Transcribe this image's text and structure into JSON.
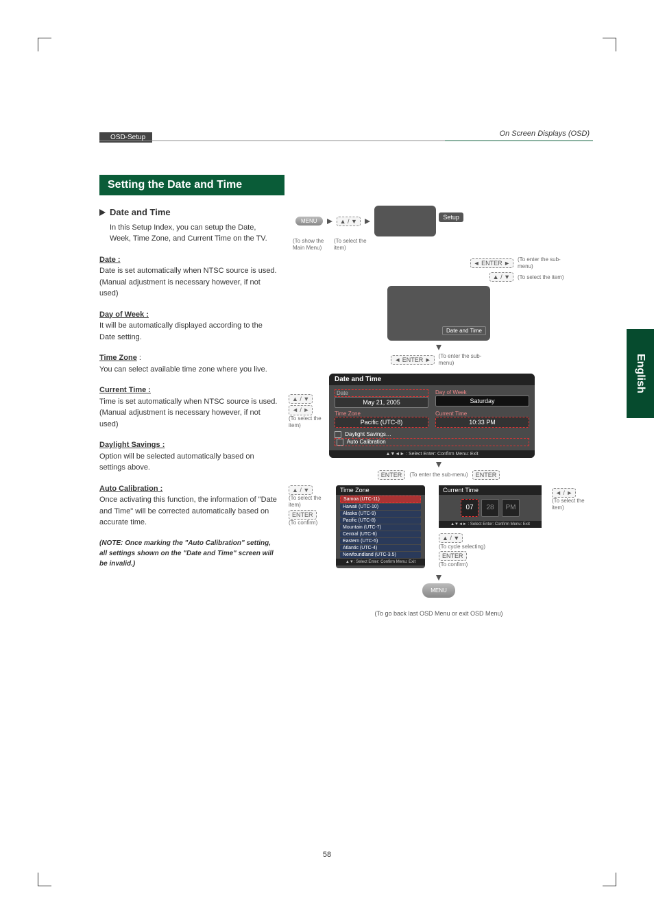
{
  "header": {
    "breadcrumb": "OSD-Setup",
    "right_label": "On Screen Displays (OSD)"
  },
  "title_bar": "Setting the Date and Time",
  "section_heading": "Date and Time",
  "intro": "In this Setup Index, you can setup the Date, Week, Time Zone, and Current Time on the TV.",
  "subs": {
    "date_head": "Date :",
    "date_body": "Date is set automatically when NTSC source is used. (Manual adjustment is necessary however, if not used)",
    "dow_head": "Day of Week :",
    "dow_body": "It will be automatically displayed according to the Date setting.",
    "tz_head": "Time Zone",
    "tz_colon": " :",
    "tz_body": "You can select available time zone where you live.",
    "ct_head": "Current Time :",
    "ct_body": "Time is set automatically when NTSC source is used. (Manual adjustment is necessary however, if not used)",
    "ds_head": "Daylight Savings :",
    "ds_body": "Option will be selected automatically based on settings above.",
    "ac_head": "Auto Calibration :",
    "ac_body": "Once activating this function, the information of \"Date and Time\" will be corrected automatically based on accurate time.",
    "note": "(NOTE: Once marking the \"Auto Calibration\" setting, all settings shown on the \"Date and Time\" screen will be invalid.)"
  },
  "flow_labels": {
    "menu_btn": "MENU",
    "to_show_main": "(To show the Main Menu)",
    "to_select_item": "(To select the item)",
    "to_enter_sub": "(To enter the sub-menu)",
    "to_select_the_item": "(To select the item)",
    "to_confirm": "(To confirm)",
    "to_cycle": "(To cycle selecting)",
    "go_back": "(To go back last OSD Menu or exit OSD Menu)",
    "setup": "Setup",
    "date_and_time": "Date and Time",
    "arrows_ud": "▲ / ▼",
    "arrows_lr": "◄ / ►",
    "arrows_enter": "◄ ENTER ►",
    "enter": "ENTER"
  },
  "dt_panel": {
    "title": "Date and Time",
    "date_label": "Date",
    "date_val": "May 21, 2005",
    "dow_label": "Day of Week",
    "dow_val": "Saturday",
    "tz_label": "Time Zone",
    "tz_val": "Pacific (UTC-8)",
    "ct_label": "Current Time",
    "ct_val": "10:33 PM",
    "ds_label": "Daylight Savings…",
    "ac_label": "Auto Calibration",
    "footer": "▲▼◄► : Select    Enter: Confirm    Menu: Exit"
  },
  "tz_panel": {
    "title": "Time Zone",
    "items": [
      "Samoa (UTC-11)",
      "Hawaii (UTC-10)",
      "Alaska (UTC-9)",
      "Pacific (UTC-8)",
      "Mountain (UTC-7)",
      "Central (UTC-6)",
      "Eastern (UTC-5)",
      "Atlantic (UTC-4)",
      "Newfoundland (UTC-3.5)"
    ],
    "footer": "▲▼: Select   Enter: Confirm   Menu: Exit"
  },
  "ct_panel": {
    "title": "Current Time",
    "h": "07",
    "m": "28",
    "ampm": "PM",
    "footer": "▲▼◄► : Select   Enter: Confirm   Menu: Exit"
  },
  "lang_tab": "English",
  "page_number": "58"
}
